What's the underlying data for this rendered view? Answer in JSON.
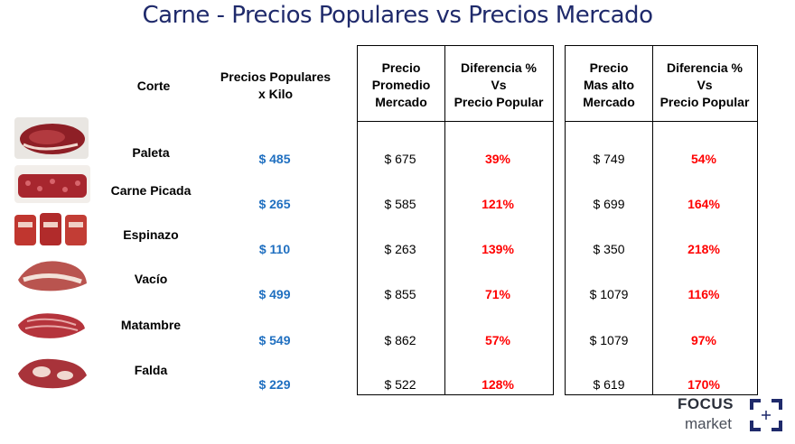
{
  "title": "Carne - Precios Populares vs Precios Mercado",
  "headers": {
    "corte": "Corte",
    "popular": "Precios Populares\nx Kilo",
    "promedio": "Precio\nPromedio\nMercado",
    "dif1": "Diferencia %\nVs\nPrecio Popular",
    "alto": "Precio\nMas alto\nMercado",
    "dif2": "Diferencia %\nVs\nPrecio Popular"
  },
  "rows": [
    {
      "corte": "Paleta",
      "popular": "$ 485",
      "promedio": "$ 675",
      "dif1": "39%",
      "alto": "$ 749",
      "dif2": "54%",
      "thumb": "meat-paleta"
    },
    {
      "corte": "Carne Picada",
      "popular": "$ 265",
      "promedio": "$ 585",
      "dif1": "121%",
      "alto": "$ 699",
      "dif2": "164%",
      "thumb": "meat-picada"
    },
    {
      "corte": "Espinazo",
      "popular": "$ 110",
      "promedio": "$ 263",
      "dif1": "139%",
      "alto": "$ 350",
      "dif2": "218%",
      "thumb": "meat-espinazo"
    },
    {
      "corte": "Vacío",
      "popular": "$ 499",
      "promedio": "$ 855",
      "dif1": "71%",
      "alto": "$ 1079",
      "dif2": "116%",
      "thumb": "meat-vacio"
    },
    {
      "corte": "Matambre",
      "popular": "$ 549",
      "promedio": "$ 862",
      "dif1": "57%",
      "alto": "$ 1079",
      "dif2": "97%",
      "thumb": "meat-matambre"
    },
    {
      "corte": "Falda",
      "popular": "$ 229",
      "promedio": "$ 522",
      "dif1": "128%",
      "alto": "$ 619",
      "dif2": "170%",
      "thumb": "meat-falda"
    }
  ],
  "logo": {
    "line1": "FOCUS",
    "line2": "market"
  },
  "colors": {
    "title": "#1f2a6b",
    "popular": "#1f6fc0",
    "diff": "#ff0000"
  }
}
